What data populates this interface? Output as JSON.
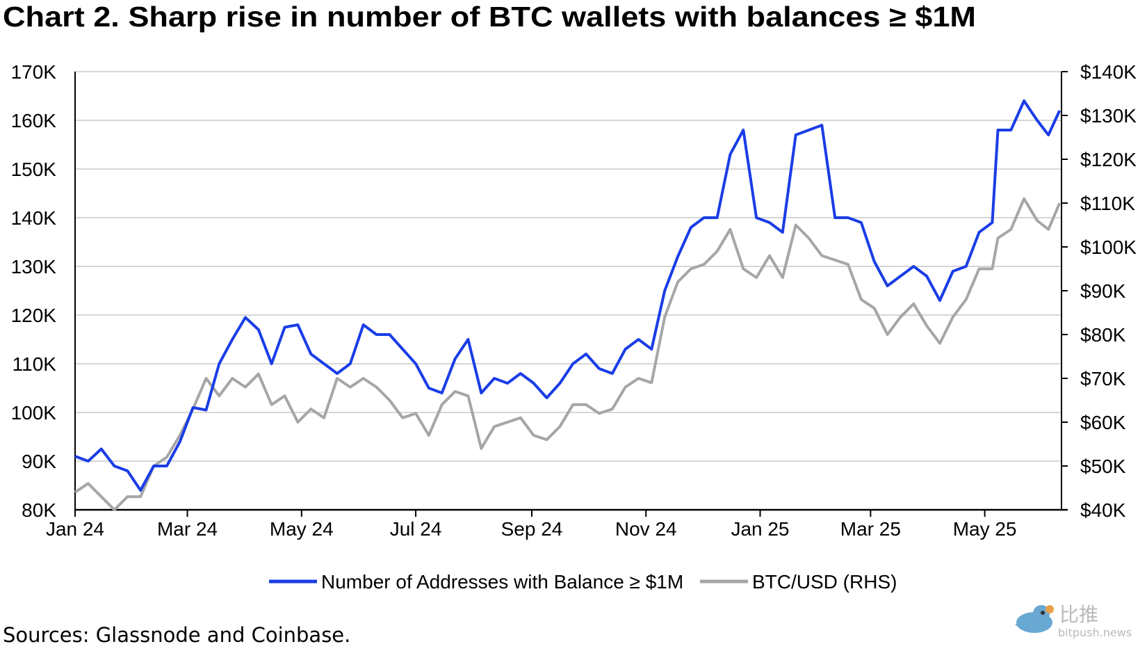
{
  "chart_data": {
    "type": "line",
    "title": "Chart 2. Sharp rise in number of BTC wallets with balances ≥ $1M",
    "source": "Sources: Glassnode and Coinbase.",
    "watermark": {
      "cn": "比推",
      "en": "bitpush.news"
    },
    "grid": true,
    "legend_position": "bottom",
    "x_ticks": [
      {
        "date": "2024-01-01",
        "label": "Jan 24"
      },
      {
        "date": "2024-03-01",
        "label": "Mar 24"
      },
      {
        "date": "2024-05-01",
        "label": "May 24"
      },
      {
        "date": "2024-07-01",
        "label": "Jul 24"
      },
      {
        "date": "2024-09-01",
        "label": "Sep 24"
      },
      {
        "date": "2024-11-01",
        "label": "Nov 24"
      },
      {
        "date": "2025-01-01",
        "label": "Jan 25"
      },
      {
        "date": "2025-03-01",
        "label": "Mar 25"
      },
      {
        "date": "2025-05-01",
        "label": "May 25"
      }
    ],
    "xlim": [
      "2024-01-01",
      "2025-06-11"
    ],
    "y_left": {
      "ylim": [
        80000,
        170000
      ],
      "ticks": [
        "80K",
        "90K",
        "100K",
        "110K",
        "120K",
        "130K",
        "140K",
        "150K",
        "160K",
        "170K"
      ]
    },
    "y_right": {
      "ylim": [
        40000,
        140000
      ],
      "ticks": [
        "$40K",
        "$50K",
        "$60K",
        "$70K",
        "$80K",
        "$90K",
        "$100K",
        "$110K",
        "$120K",
        "$130K",
        "$140K"
      ]
    },
    "x": [
      "2024-01-01",
      "2024-01-08",
      "2024-01-15",
      "2024-01-22",
      "2024-01-29",
      "2024-02-05",
      "2024-02-12",
      "2024-02-19",
      "2024-02-26",
      "2024-03-04",
      "2024-03-11",
      "2024-03-18",
      "2024-03-25",
      "2024-04-01",
      "2024-04-08",
      "2024-04-15",
      "2024-04-22",
      "2024-04-29",
      "2024-05-06",
      "2024-05-13",
      "2024-05-20",
      "2024-05-27",
      "2024-06-03",
      "2024-06-10",
      "2024-06-17",
      "2024-06-24",
      "2024-07-01",
      "2024-07-08",
      "2024-07-15",
      "2024-07-22",
      "2024-07-29",
      "2024-08-05",
      "2024-08-12",
      "2024-08-19",
      "2024-08-26",
      "2024-09-02",
      "2024-09-09",
      "2024-09-16",
      "2024-09-23",
      "2024-09-30",
      "2024-10-07",
      "2024-10-14",
      "2024-10-21",
      "2024-10-28",
      "2024-11-04",
      "2024-11-11",
      "2024-11-18",
      "2024-11-25",
      "2024-12-02",
      "2024-12-09",
      "2024-12-16",
      "2024-12-23",
      "2024-12-30",
      "2025-01-06",
      "2025-01-13",
      "2025-01-20",
      "2025-01-27",
      "2025-02-03",
      "2025-02-10",
      "2025-02-17",
      "2025-02-24",
      "2025-03-03",
      "2025-03-10",
      "2025-03-17",
      "2025-03-24",
      "2025-03-31",
      "2025-04-07",
      "2025-04-14",
      "2025-04-21",
      "2025-04-28",
      "2025-05-05",
      "2025-05-08",
      "2025-05-15",
      "2025-05-22",
      "2025-05-29",
      "2025-06-04",
      "2025-06-10"
    ],
    "series": [
      {
        "name": "Number of Addresses with Balance ≥ $1M",
        "axis": "left",
        "color": "#1a3de6",
        "values": [
          91000,
          90000,
          92500,
          89000,
          88000,
          84000,
          89000,
          89000,
          94000,
          101000,
          100500,
          110000,
          115000,
          119500,
          117000,
          110000,
          117500,
          118000,
          112000,
          110000,
          108000,
          110000,
          118000,
          116000,
          116000,
          113000,
          110000,
          105000,
          104000,
          111000,
          115000,
          104000,
          107000,
          106000,
          108000,
          106000,
          103000,
          106000,
          110000,
          112000,
          109000,
          108000,
          113000,
          115000,
          113000,
          125000,
          132000,
          138000,
          140000,
          140000,
          153000,
          158000,
          140000,
          139000,
          137000,
          157000,
          158000,
          159000,
          140000,
          140000,
          139000,
          131000,
          126000,
          128000,
          130000,
          128000,
          123000,
          129000,
          130000,
          137000,
          139000,
          158000,
          158000,
          164000,
          160000,
          157000,
          162000
        ]
      },
      {
        "name": "BTC/USD (RHS)",
        "axis": "right",
        "color": "#a6a6a6",
        "values": [
          44000,
          46000,
          43000,
          40000,
          43000,
          43000,
          50000,
          52000,
          57000,
          63000,
          70000,
          66000,
          70000,
          68000,
          71000,
          64000,
          66000,
          60000,
          63000,
          61000,
          70000,
          68000,
          70000,
          68000,
          65000,
          61000,
          62000,
          57000,
          64000,
          67000,
          66000,
          54000,
          59000,
          60000,
          61000,
          57000,
          56000,
          59000,
          64000,
          64000,
          62000,
          63000,
          68000,
          70000,
          69000,
          84000,
          92000,
          95000,
          96000,
          99000,
          104000,
          95000,
          93000,
          98000,
          93000,
          105000,
          102000,
          98000,
          97000,
          96000,
          88000,
          86000,
          80000,
          84000,
          87000,
          82000,
          78000,
          84000,
          88000,
          95000,
          95000,
          102000,
          104000,
          111000,
          106000,
          104000,
          110000
        ]
      }
    ]
  }
}
